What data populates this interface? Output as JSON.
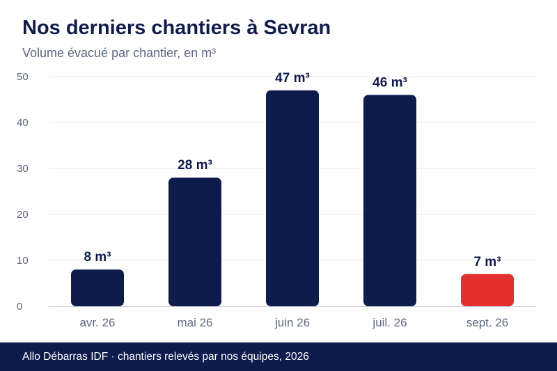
{
  "header": {
    "title": "Nos derniers chantiers à Sevran",
    "subtitle": "Volume évacué par chantier, en m³"
  },
  "footer": {
    "text": "Allo Débarras IDF · chantiers relevés par nos équipes, 2026"
  },
  "colors": {
    "primary": "#0e1b4d",
    "highlight": "#e3302e",
    "axis_text": "#5c6685",
    "grid": "#eeeeee"
  },
  "chart_data": {
    "type": "bar",
    "categories": [
      "avr. 26",
      "mai 26",
      "juin 26",
      "juil. 26",
      "sept. 26"
    ],
    "values": [
      8,
      28,
      47,
      46,
      7
    ],
    "data_labels": [
      "8 m³",
      "28 m³",
      "47 m³",
      "46 m³",
      "7 m³"
    ],
    "highlight_index": 4,
    "ylim": [
      0,
      50
    ],
    "yticks": [
      0,
      10,
      20,
      30,
      40,
      50
    ],
    "grid": true,
    "legend": "none"
  }
}
